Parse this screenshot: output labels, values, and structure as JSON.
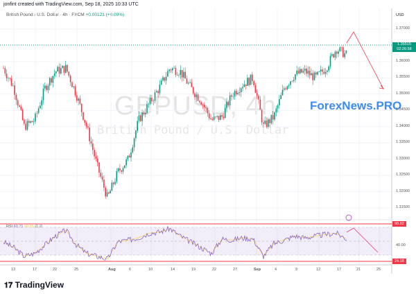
{
  "header": {
    "created": "jonfint created with TradingView.com, Sep 18, 2025 10:33 UTC"
  },
  "symbol": {
    "desc": "British Pound / U.S. Dollar · 4h · FXCM",
    "change": "+0.00121 (+0.09%)"
  },
  "watermark": {
    "ticker": "GBPUSD, 4h",
    "name": "British Pound / U.S. Dollar"
  },
  "logo": "ForexNews.PRO",
  "price_axis": {
    "currency": "USD",
    "labels": [
      "1.37000",
      "1.36000",
      "1.35500",
      "1.35000",
      "1.34500",
      "1.34000",
      "1.33500",
      "1.33000",
      "1.32500",
      "1.32000",
      "1.31500"
    ],
    "current_price": "1.36515",
    "countdown": "02:26:58"
  },
  "rsi": {
    "label": "RSI",
    "value": "60.71",
    "ma_value": "60.55",
    "extra": "∅ ∅",
    "axis_label": "40.00",
    "upper_line": "60.82",
    "lower_line": "24.18"
  },
  "time_axis": [
    "13",
    "17",
    "22",
    "25",
    "Aug",
    "6",
    "10",
    "14",
    "19",
    "22",
    "27",
    "Sep",
    "4",
    "9",
    "12",
    "17",
    "21",
    "25"
  ],
  "colors": {
    "up": "#089981",
    "down": "#f23645",
    "rsi": "#7e57c2",
    "rsi_ma": "#f7d26b",
    "arrow": "#f23645",
    "logo": "#3d8bf0"
  },
  "chart_data": {
    "type": "candlestick",
    "approx_closes": [
      1.358,
      1.352,
      1.34,
      1.342,
      1.352,
      1.357,
      1.358,
      1.35,
      1.34,
      1.328,
      1.318,
      1.326,
      1.33,
      1.342,
      1.347,
      1.352,
      1.358,
      1.357,
      1.352,
      1.348,
      1.342,
      1.343,
      1.35,
      1.353,
      1.355,
      1.34,
      1.343,
      1.352,
      1.356,
      1.357,
      1.355,
      1.358,
      1.364,
      1.362
    ],
    "rsi_values": [
      55,
      45,
      30,
      35,
      50,
      65,
      75,
      50,
      35,
      30,
      25,
      55,
      58,
      62,
      70,
      72,
      78,
      65,
      55,
      45,
      35,
      60,
      58,
      62,
      60,
      30,
      52,
      58,
      65,
      62,
      65,
      68,
      70,
      60
    ],
    "ylim": [
      1.312,
      1.373
    ]
  },
  "footer": {
    "brand": "TradingView"
  }
}
